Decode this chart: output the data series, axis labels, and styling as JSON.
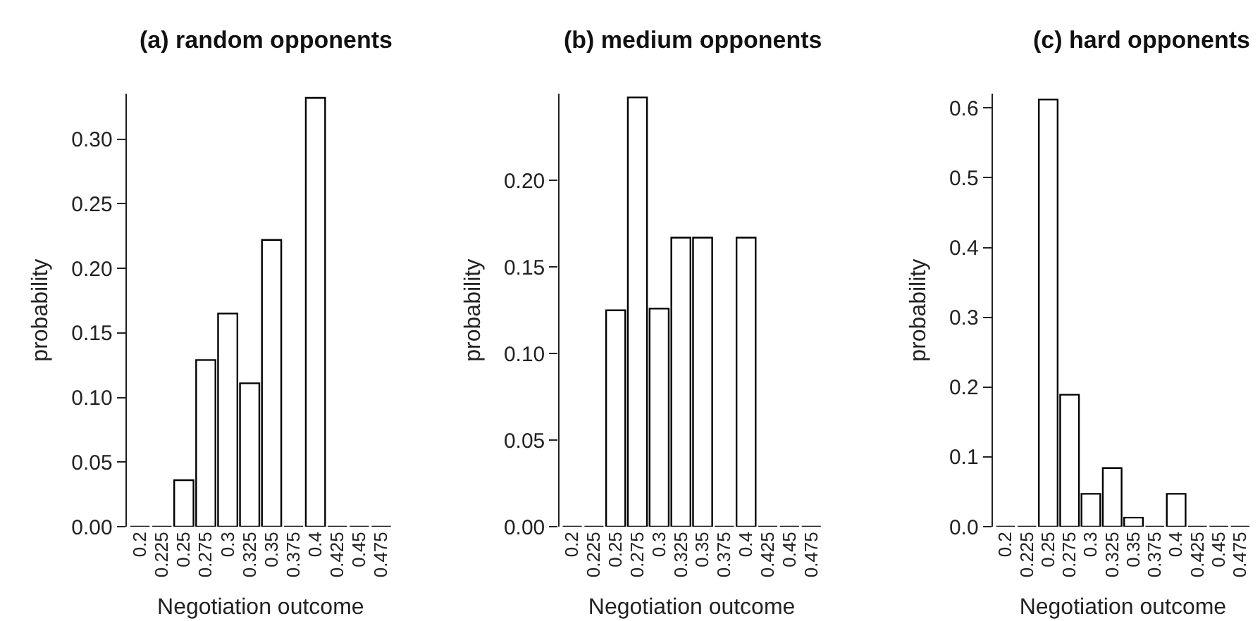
{
  "chart_data": [
    {
      "type": "bar",
      "title": "(a) random opponents",
      "xlabel": "Negotiation outcome",
      "ylabel": "probability",
      "categories": [
        "0.2",
        "0.225",
        "0.25",
        "0.275",
        "0.3",
        "0.325",
        "0.35",
        "0.375",
        "0.4",
        "0.425",
        "0.45",
        "0.475"
      ],
      "values": [
        0,
        0,
        0.036,
        0.129,
        0.165,
        0.111,
        0.222,
        0,
        0.332,
        0,
        0,
        0
      ],
      "colors": [
        "#000000",
        "#000000",
        "#ffffff",
        "#ffffff",
        "#ffffff",
        "#ffffff",
        "#ffffff",
        "#000000",
        "#ffffff",
        "#000000",
        "#000000",
        "#000000"
      ],
      "ylim": [
        0,
        0.335
      ],
      "yticks": [
        {
          "value": 0,
          "label": "0.00"
        },
        0.05,
        {
          "value": 0.1,
          "label": "0.10"
        },
        0.15,
        {
          "value": 0.2,
          "label": "0.20"
        },
        0.25,
        {
          "value": 0.3,
          "label": "0.30"
        }
      ]
    },
    {
      "type": "bar",
      "title": "(b) medium opponents",
      "xlabel": "Negotiation outcome",
      "ylabel": "probability",
      "categories": [
        "0.2",
        "0.225",
        "0.25",
        "0.275",
        "0.3",
        "0.325",
        "0.35",
        "0.375",
        "0.4",
        "0.425",
        "0.45",
        "0.475"
      ],
      "values": [
        0,
        0,
        0.125,
        0.248,
        0.126,
        0.167,
        0.167,
        0,
        0.167,
        0,
        0,
        0
      ],
      "colors": [
        "#000000",
        "#000000",
        "#ffffff",
        "#ffffff",
        "#ffffff",
        "#ffffff",
        "#ffffff",
        "#000000",
        "#ffffff",
        "#000000",
        "#000000",
        "#000000"
      ],
      "ylim": [
        0,
        0.25
      ],
      "yticks": [
        {
          "value": 0,
          "label": "0.00"
        },
        0.05,
        {
          "value": 0.1,
          "label": "0.10"
        },
        0.15,
        {
          "value": 0.2,
          "label": "0.20"
        }
      ]
    },
    {
      "type": "bar",
      "title": "(c) hard opponents",
      "xlabel": "Negotiation outcome",
      "ylabel": "probability",
      "categories": [
        "0.2",
        "0.225",
        "0.25",
        "0.275",
        "0.3",
        "0.325",
        "0.35",
        "0.375",
        "0.4",
        "0.425",
        "0.45",
        "0.475"
      ],
      "values": [
        0,
        0,
        0.612,
        0.189,
        0.047,
        0.084,
        0.013,
        0,
        0.047,
        0,
        0,
        0
      ],
      "colors": [
        "#000000",
        "#000000",
        "#ffffff",
        "#ffffff",
        "#ffffff",
        "#ffffff",
        "#ffffff",
        "#000000",
        "#ffffff",
        "#000000",
        "#000000",
        "#000000"
      ],
      "ylim": [
        0,
        0.62
      ],
      "yticks": [
        {
          "value": 0,
          "label": "0.0"
        },
        0.1,
        0.2,
        0.3,
        0.4,
        0.5,
        0.6
      ]
    }
  ]
}
